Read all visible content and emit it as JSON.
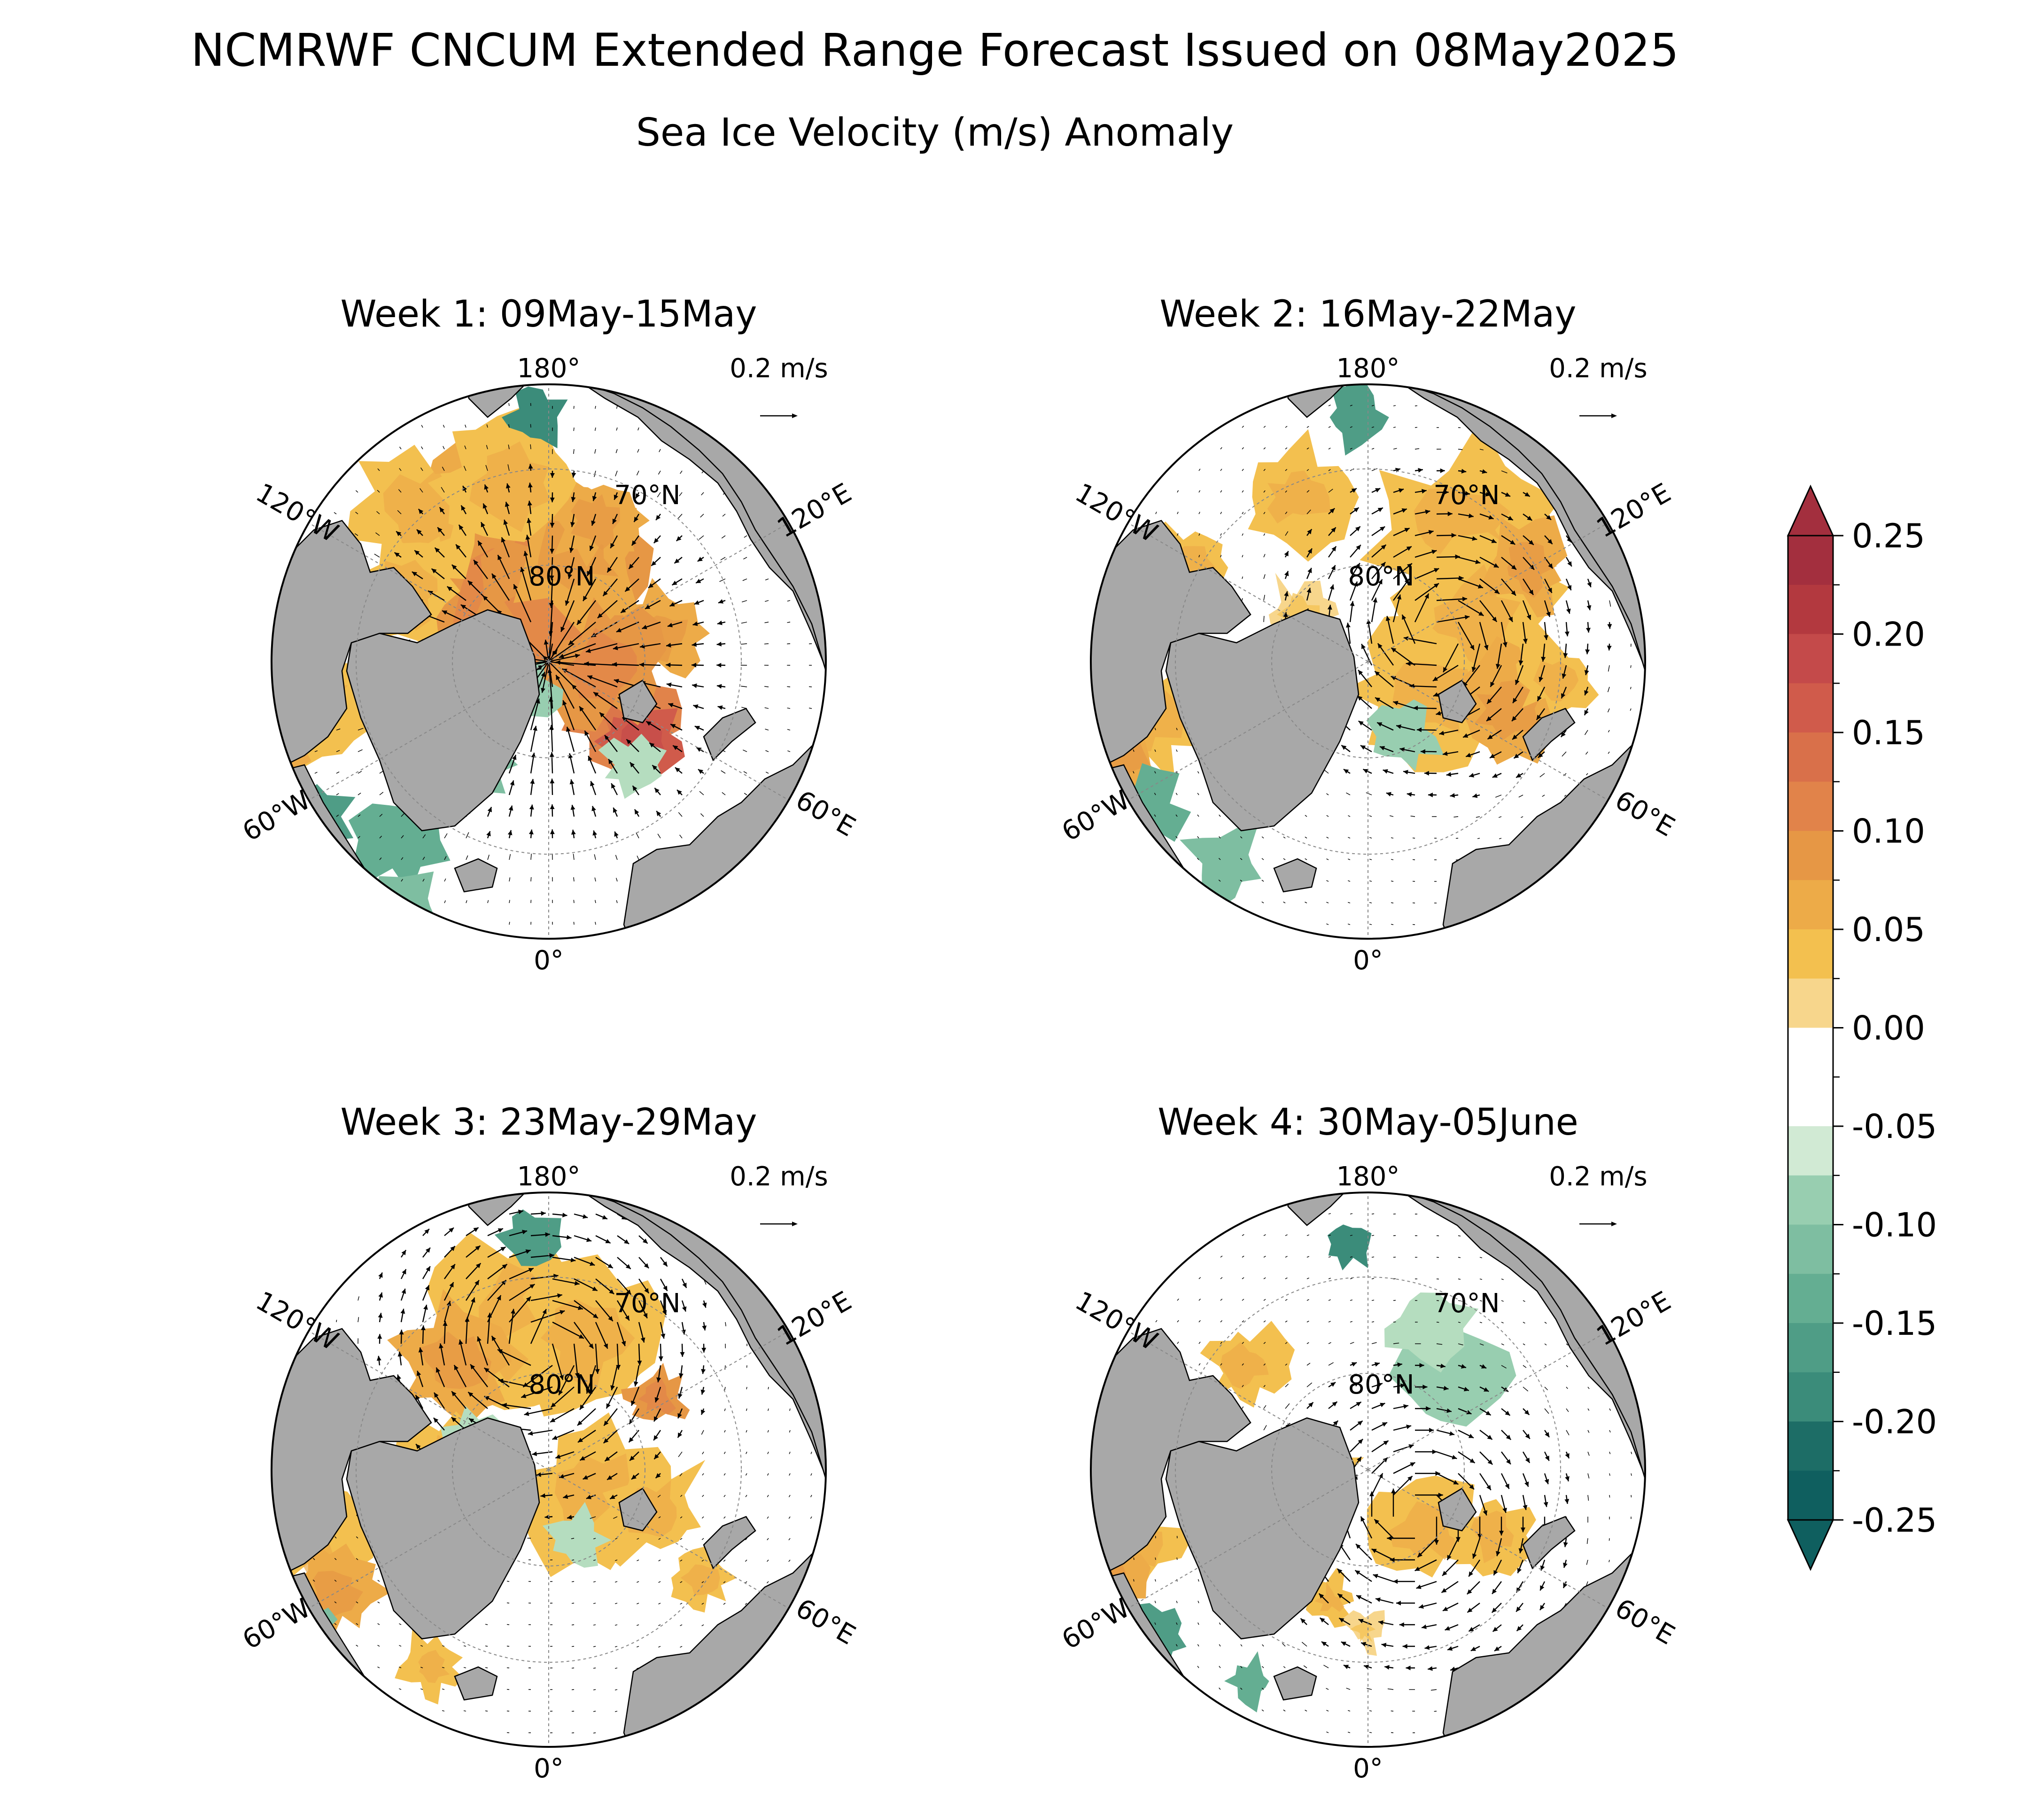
{
  "figure": {
    "title": "NCMRWF CNCUM Extended Range Forecast Issued on 08May2025",
    "subtitle": "Sea Ice Velocity (m/s) Anomaly"
  },
  "panels": [
    {
      "title": "Week 1: 09May-15May",
      "pattern": "transpolar"
    },
    {
      "title": "Week 2: 16May-22May",
      "pattern": "eastern"
    },
    {
      "title": "Week 3: 23May-29May",
      "pattern": "beaufort"
    },
    {
      "title": "Week 4: 30May-05June",
      "pattern": "laptev"
    }
  ],
  "map_labels": {
    "lon_top": "180°",
    "lon_bottom": "0°",
    "lon_upper_left": "120°W",
    "lon_lower_left": "60°W",
    "lon_upper_right": "120°E",
    "lon_lower_right": "60°E",
    "lat_70": "70°N",
    "lat_80": "80°N"
  },
  "reference_vector": {
    "label": "0.2 m/s",
    "value": 0.2
  },
  "colorbar": {
    "ticks": [
      "0.25",
      "0.20",
      "0.15",
      "0.10",
      "0.05",
      "0.00",
      "-0.05",
      "-0.10",
      "-0.15",
      "-0.20",
      "-0.25"
    ],
    "min": -0.25,
    "max": 0.25,
    "extend": "both"
  },
  "colors": {
    "land": "#a8a8a8",
    "ocean": "#ffffff",
    "positive": [
      "#f7d68c",
      "#f3c04f",
      "#edab48",
      "#e69745",
      "#e1834a",
      "#d9704a",
      "#d05b4b",
      "#c44a4a",
      "#b3393f",
      "#a32f3e"
    ],
    "negative": [
      "#d1ead4",
      "#b5ddbf",
      "#98ceb0",
      "#7ebea1",
      "#64ae92",
      "#4f9d86",
      "#3b8c7a",
      "#2a7c6f",
      "#1d6d66",
      "#0f5f5f"
    ]
  }
}
